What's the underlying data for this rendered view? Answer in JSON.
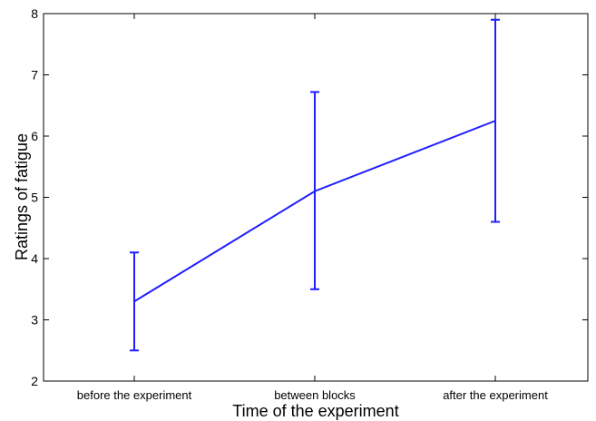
{
  "chart_data": {
    "type": "line",
    "categories": [
      "before the experiment",
      "between blocks",
      "after the experiment"
    ],
    "series": [
      {
        "values": [
          3.3,
          5.1,
          6.25
        ],
        "error_low": [
          2.5,
          3.5,
          4.6
        ],
        "error_high": [
          4.1,
          6.72,
          7.9
        ],
        "color": "#1f1fff"
      }
    ],
    "xlabel": "Time of the experiment",
    "ylabel": "Ratings of fatigue",
    "ylim": [
      2,
      8
    ],
    "yticks": [
      2,
      3,
      4,
      5,
      6,
      7,
      8
    ],
    "grid": false
  }
}
